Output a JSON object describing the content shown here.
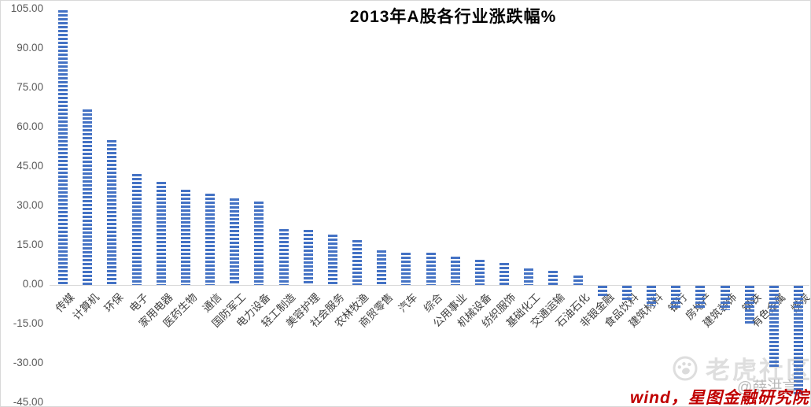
{
  "chart_data": {
    "type": "bar",
    "title": "2013年A股各行业涨跌幅%",
    "categories": [
      "传媒",
      "计算机",
      "环保",
      "电子",
      "家用电器",
      "医药生物",
      "通信",
      "国防军工",
      "电力设备",
      "轻工制造",
      "美容护理",
      "社会服务",
      "农林牧渔",
      "商贸零售",
      "汽车",
      "综合",
      "公用事业",
      "机械设备",
      "纺织服饰",
      "基础化工",
      "交通运输",
      "石油石化",
      "非银金融",
      "食品饮料",
      "建筑材料",
      "银行",
      "房地产",
      "建筑装饰",
      "钢铁",
      "有色金属",
      "煤炭"
    ],
    "values": [
      104.7,
      66.9,
      55.3,
      42.3,
      39.3,
      36.3,
      34.8,
      33.1,
      31.8,
      21.3,
      21.0,
      19.1,
      17.1,
      13.2,
      12.4,
      12.2,
      10.8,
      9.5,
      8.5,
      6.3,
      5.3,
      3.5,
      -4.2,
      -6.0,
      -7.7,
      -8.4,
      -8.8,
      -9.2,
      -14.5,
      -31.0,
      -41.8
    ],
    "ylim": [
      -45,
      105
    ],
    "ytick_labels": [
      "105.00",
      "90.00",
      "75.00",
      "60.00",
      "45.00",
      "30.00",
      "15.00",
      "0.00",
      "-15.00",
      "-30.00",
      "-45.00"
    ],
    "bar_color": "#4472c4",
    "bar_pattern": "horizontal-stripes",
    "grid": false,
    "legend": "none",
    "xlabel": "",
    "ylabel": ""
  },
  "watermark": {
    "community_text": "老虎社区",
    "handle_text": "@薛洪言",
    "source_text": "wind，星图金融研究院",
    "source_color": "#c00000",
    "community_color": "#c3c3c3"
  }
}
